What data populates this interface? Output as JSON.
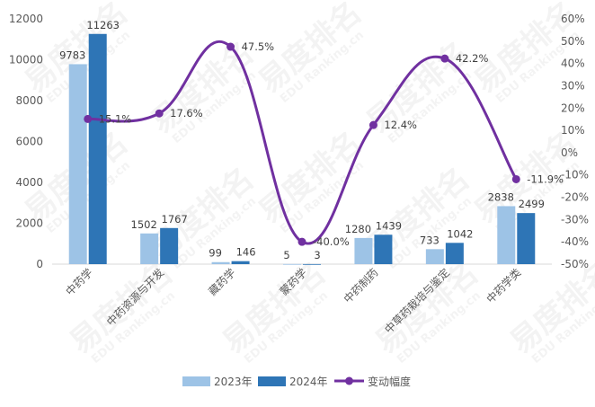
{
  "chart_data": {
    "type": "bar",
    "categories": [
      "中药学",
      "中药资源与开发",
      "藏药学",
      "蒙药学",
      "中药制药",
      "中草药栽培与鉴定",
      "中药学类"
    ],
    "series": [
      {
        "name": "2023年",
        "type": "bar",
        "axis": "left",
        "color": "#9DC3E6",
        "values": [
          9783,
          1502,
          99,
          5,
          1280,
          733,
          2838
        ],
        "labels": [
          "9783",
          "1502",
          "99",
          "5",
          "1280",
          "733",
          "2838"
        ]
      },
      {
        "name": "2024年",
        "type": "bar",
        "axis": "left",
        "color": "#2E75B6",
        "values": [
          11263,
          1767,
          146,
          3,
          1439,
          1042,
          2499
        ],
        "labels": [
          "11263",
          "1767",
          "146",
          "3",
          "1439",
          "1042",
          "2499"
        ]
      },
      {
        "name": "变动幅度",
        "type": "line",
        "axis": "right",
        "color": "#7030A0",
        "values": [
          15.1,
          17.6,
          47.5,
          -40.0,
          12.4,
          42.2,
          -11.9
        ],
        "labels": [
          "15.1%",
          "17.6%",
          "47.5%",
          "-40.0%",
          "12.4%",
          "42.2%",
          "-11.9%"
        ]
      }
    ],
    "y_left": {
      "min": 0,
      "max": 12000,
      "step": 2000,
      "ticks": [
        "0",
        "2000",
        "4000",
        "6000",
        "8000",
        "10000",
        "12000"
      ]
    },
    "y_right": {
      "min": -50,
      "max": 60,
      "step": 10,
      "ticks": [
        "-50%",
        "-40%",
        "-30%",
        "-20%",
        "-10%",
        "0%",
        "10%",
        "20%",
        "30%",
        "40%",
        "50%",
        "60%"
      ]
    },
    "grid": false,
    "legend_position": "bottom"
  },
  "watermark": {
    "text": "易度排名",
    "subtext": "EDU Ranking.cn"
  }
}
